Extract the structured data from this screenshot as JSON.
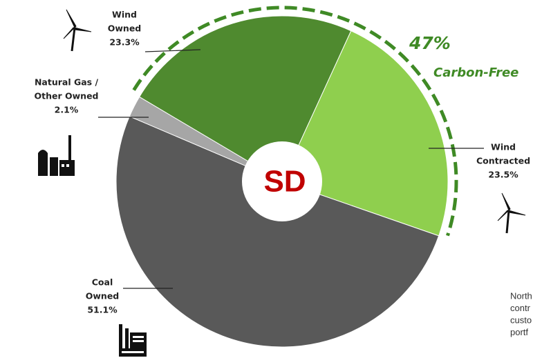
{
  "chart_data": {
    "type": "donut",
    "categories": [
      [
        "Wind",
        "Owned"
      ],
      [
        "Wind",
        "Contracted"
      ],
      [
        "Coal",
        "Owned"
      ],
      [
        "Natural Gas /",
        "Other Owned"
      ]
    ],
    "values": [
      23.3,
      23.5,
      51.1,
      2.1
    ],
    "value_labels": [
      "23.3%",
      "23.5%",
      "51.1%",
      "2.1%"
    ],
    "colors": [
      "#4f8a2f",
      "#8fcf4e",
      "#595959",
      "#a6a6a6"
    ],
    "center_label": "SD",
    "annotation": {
      "value": "47%",
      "label": "Carbon-Free"
    },
    "side_note": [
      "North",
      "contr",
      "custo",
      "portf"
    ]
  }
}
